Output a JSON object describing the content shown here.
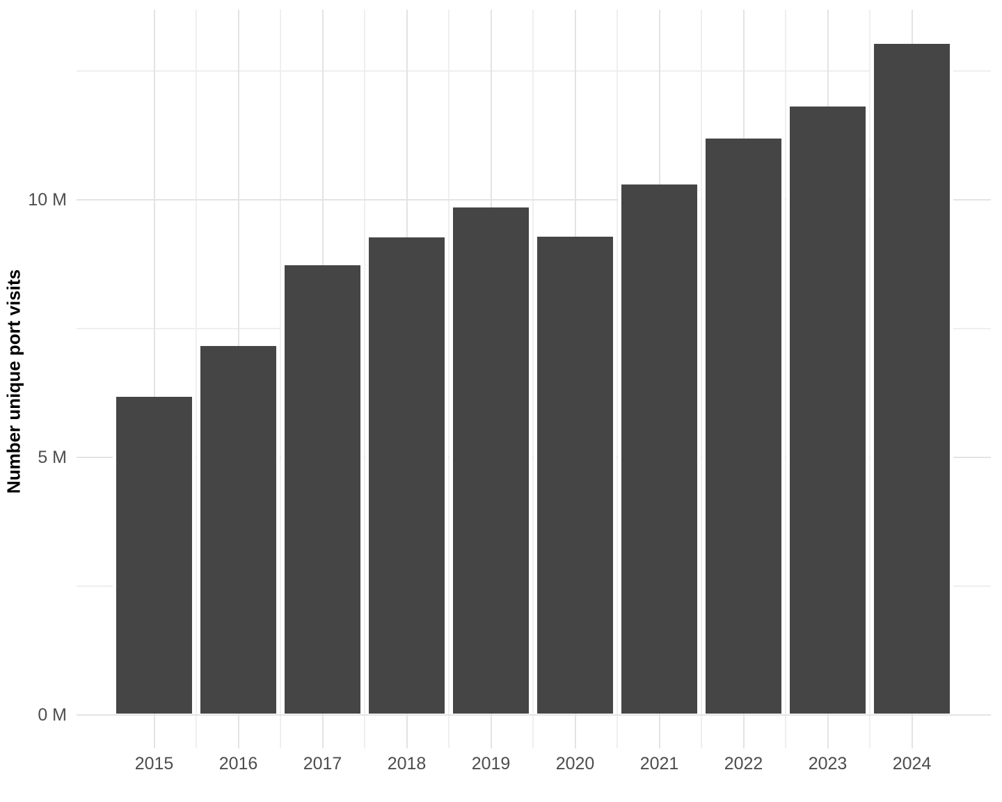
{
  "chart_data": {
    "type": "bar",
    "title": "",
    "xlabel": "",
    "ylabel": "Number unique port visits",
    "categories": [
      "2015",
      "2016",
      "2017",
      "2018",
      "2019",
      "2020",
      "2021",
      "2022",
      "2023",
      "2024"
    ],
    "values": [
      6.18,
      7.16,
      8.73,
      9.27,
      9.85,
      9.29,
      10.3,
      11.19,
      11.81,
      13.03
    ],
    "values_unit": "millions",
    "ylim": [
      0,
      13.7
    ],
    "y_major_ticks": [
      0,
      5,
      10
    ],
    "y_minor_ticks": [
      2.5,
      7.5,
      12.5
    ],
    "y_tick_labels": [
      "0 M",
      "5 M",
      "10 M"
    ],
    "grid": "on",
    "legend": "none",
    "bar_color": "#454545",
    "grid_major_color": "#E3E3E3",
    "grid_minor_color": "#EFEFEF",
    "tick_label_color": "#4D4D4D",
    "axis_title_color": "#000000"
  }
}
